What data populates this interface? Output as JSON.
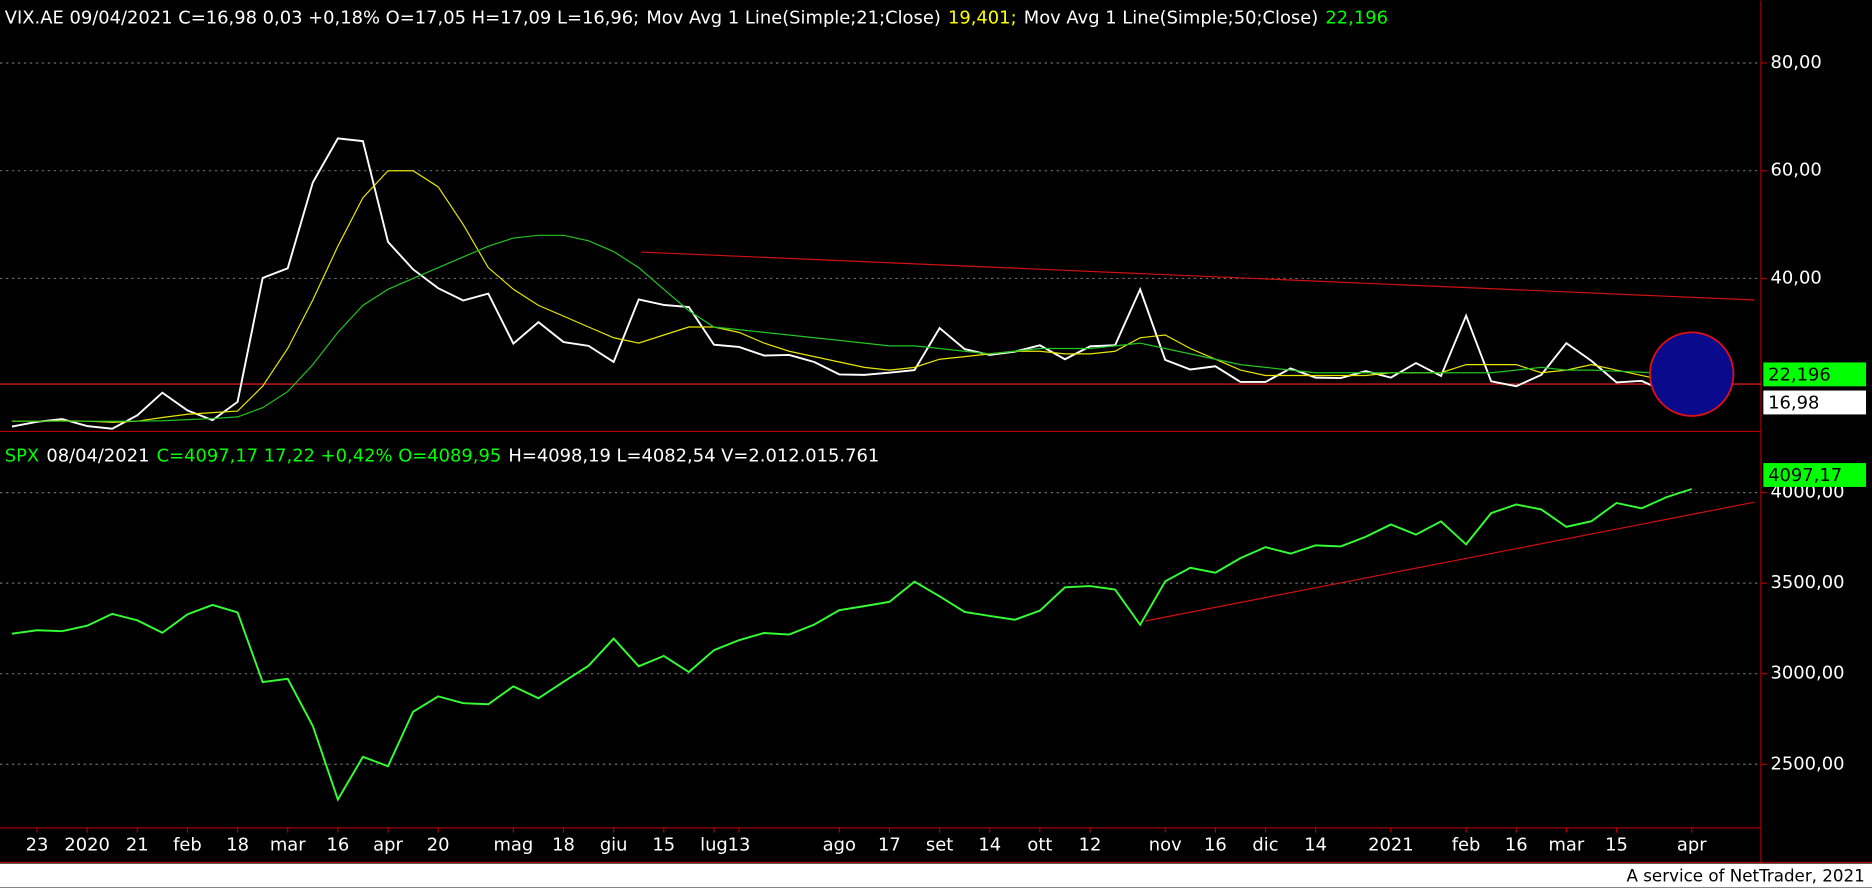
{
  "chart_data": [
    {
      "type": "line",
      "title_parts": [
        {
          "text": "VIX.AE 09/04/2021 C=16,98 0,03 +0,18% O=17,05 H=17,09 L=16,96;",
          "color": "#ffffff"
        },
        {
          "text": "Mov Avg 1 Line(Simple;21;Close)",
          "color": "#ffffff"
        },
        {
          "text": "19,401;",
          "color": "#ffff00"
        },
        {
          "text": "Mov Avg 1 Line(Simple;50;Close)",
          "color": "#ffffff"
        },
        {
          "text": "22,196",
          "color": "#00ff00"
        }
      ],
      "series": [
        {
          "name": "VIX.AE",
          "color": "#ffffff",
          "values": [
            12.5,
            13.4,
            13.9,
            12.6,
            12.1,
            14.6,
            18.8,
            15.5,
            13.7,
            17.1,
            40.1,
            41.9,
            57.8,
            66.0,
            65.5,
            46.8,
            41.7,
            38.2,
            35.9,
            37.2,
            27.9,
            31.9,
            28.2,
            27.5,
            24.5,
            36.1,
            35.1,
            34.7,
            27.7,
            27.3,
            25.7,
            25.8,
            24.5,
            22.2,
            22.1,
            22.5,
            23.0,
            30.8,
            26.9,
            25.8,
            26.4,
            27.6,
            25.0,
            27.4,
            27.6,
            38.0,
            24.9,
            23.1,
            23.7,
            20.8,
            20.8,
            23.3,
            21.6,
            21.5,
            22.8,
            21.6,
            24.3,
            21.9,
            33.1,
            20.9,
            20.0,
            22.1,
            28.0,
            24.7,
            20.7,
            21.0,
            18.9,
            17.3
          ]
        },
        {
          "name": "Mov Avg 21",
          "color": "#e6e600",
          "values": [
            13.5,
            13.5,
            13.6,
            13.5,
            13.3,
            13.5,
            14.2,
            14.8,
            15.1,
            15.4,
            20,
            27,
            36,
            46,
            55,
            60,
            60,
            57,
            50,
            42,
            38,
            35,
            33,
            31,
            29,
            28,
            29.5,
            31,
            31,
            30,
            28,
            26.5,
            25.5,
            24.5,
            23.5,
            23,
            23.5,
            25,
            25.5,
            26,
            26.5,
            26.5,
            26,
            26,
            26.5,
            29,
            29.5,
            27,
            25,
            23,
            22,
            22,
            22,
            22,
            22,
            22.5,
            22.5,
            22.5,
            24,
            24,
            24,
            22.5,
            23,
            24,
            23,
            22,
            21,
            19.4
          ]
        },
        {
          "name": "Mov Avg 50",
          "color": "#22c322",
          "values": [
            13.5,
            13.5,
            13.5,
            13.5,
            13.5,
            13.5,
            13.6,
            13.8,
            14,
            14.3,
            16,
            19,
            24,
            30,
            35,
            38,
            40,
            42,
            44,
            46,
            47.5,
            48,
            48,
            47,
            45,
            42,
            38,
            34,
            31,
            30.5,
            30,
            29.5,
            29,
            28.5,
            28,
            27.5,
            27.5,
            27,
            26.5,
            26,
            26.5,
            27,
            27,
            27,
            27.5,
            28,
            27,
            26,
            25,
            24,
            23.5,
            23,
            22.5,
            22.5,
            22.5,
            22.5,
            22.5,
            22.5,
            22.5,
            22.5,
            23,
            23.5,
            23,
            23,
            22.8,
            22.6,
            22.4,
            22.2
          ]
        }
      ],
      "ylim": [
        11.6,
        91.6
      ],
      "yticks": [
        {
          "value": 40,
          "label": "40,00"
        },
        {
          "value": 60,
          "label": "60,00"
        },
        {
          "value": 80,
          "label": "80,00"
        }
      ],
      "grid": true,
      "hline": {
        "value": 20.4,
        "color": "#ff2020"
      },
      "trendline": {
        "from": [
          25.1,
          44.9
        ],
        "to": [
          69.5,
          36.0
        ],
        "color": "#d01010"
      },
      "price_tags": [
        {
          "value": 22.196,
          "label": "22,196",
          "color": "#00ff00"
        },
        {
          "value": 16.98,
          "label": "16,98",
          "color": "#ffffff"
        }
      ]
    },
    {
      "type": "line",
      "title_parts": [
        {
          "text": "SPX",
          "color": "#00ff00"
        },
        {
          "text": "08/04/2021",
          "color": "#ffffff"
        },
        {
          "text": "C=4097,17 17,22 +0,42% O=4089,95",
          "color": "#00ff00"
        },
        {
          "text": "H=4098,19 L=4082,54 V=2.012.015.761",
          "color": "#ffffff"
        }
      ],
      "categories": [
        null,
        "23",
        null,
        "2020",
        null,
        "21",
        null,
        "feb",
        null,
        "18",
        null,
        "mar",
        null,
        "16",
        null,
        "apr",
        null,
        "20",
        null,
        null,
        "mag",
        null,
        "18",
        null,
        "giu",
        null,
        "15",
        null,
        "lug",
        "13",
        null,
        null,
        null,
        "ago",
        null,
        "17",
        null,
        "set",
        null,
        "14",
        null,
        "ott",
        null,
        "12",
        null,
        null,
        "nov",
        null,
        "16",
        null,
        "dic",
        null,
        "14",
        null,
        null,
        "2021",
        null,
        null,
        "feb",
        null,
        "16",
        null,
        "mar",
        null,
        "15",
        null,
        null,
        "apr"
      ],
      "series": [
        {
          "name": "SPX",
          "color": "#33ff33",
          "values": [
            3221,
            3240,
            3235,
            3265,
            3330,
            3295,
            3226,
            3328,
            3380,
            3338,
            2954,
            2972,
            2711,
            2305,
            2541,
            2489,
            2790,
            2875,
            2837,
            2831,
            2930,
            2864,
            2955,
            3044,
            3194,
            3041,
            3098,
            3009,
            3130,
            3185,
            3225,
            3216,
            3271,
            3351,
            3373,
            3397,
            3508,
            3427,
            3341,
            3319,
            3298,
            3348,
            3477,
            3484,
            3465,
            3270,
            3510,
            3585,
            3558,
            3638,
            3699,
            3663,
            3709,
            3703,
            3756,
            3824,
            3768,
            3841,
            3714,
            3887,
            3934,
            3907,
            3811,
            3842,
            3943,
            3913,
            3975,
            4020
          ]
        }
      ],
      "ylim": [
        2149,
        4331
      ],
      "yticks": [
        {
          "value": 2500,
          "label": "2500,00"
        },
        {
          "value": 3000,
          "label": "3000,00"
        },
        {
          "value": 3500,
          "label": "3500,00"
        },
        {
          "value": 4000,
          "label": "4000,00"
        }
      ],
      "grid": true,
      "trendline": {
        "from": [
          45.2,
          3291
        ],
        "to": [
          69.5,
          3947
        ],
        "color": "#d01010"
      },
      "price_tags": [
        {
          "value": 4097.17,
          "label": "4097,17",
          "color": "#00ff00"
        }
      ]
    }
  ],
  "footer": "A service of NetTrader, 2021"
}
